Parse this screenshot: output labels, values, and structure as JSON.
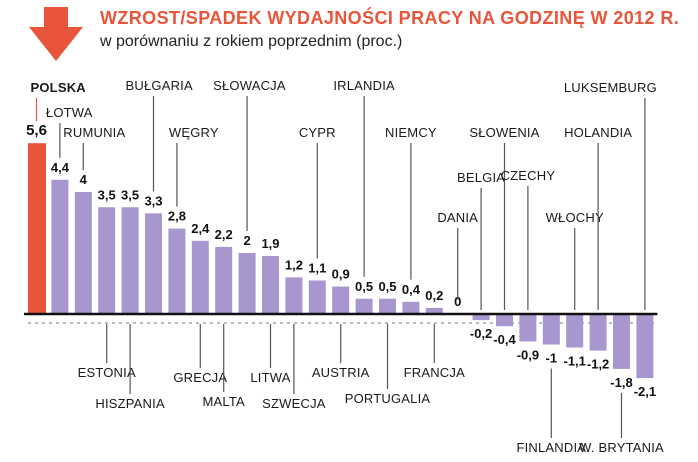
{
  "header": {
    "title": "WZROST/SPADEK WYDAJNOŚCI PRACY NA GODZINĘ W 2012 R.",
    "subtitle": "w porównaniu z rokiem poprzednim (proc.)",
    "icon": "down-arrow-icon"
  },
  "colors": {
    "accent": "#e8553a",
    "bar": "#a896cf",
    "axis": "#111111",
    "leader": "#555555",
    "axis_dash": "#777777"
  },
  "chart_data": {
    "type": "bar",
    "title": "WZROST/SPADEK WYDAJNOŚCI PRACY NA GODZINĘ W 2012 R.",
    "subtitle": "w porównaniu z rokiem poprzednim (proc.)",
    "xlabel": "",
    "ylabel": "",
    "ylim": [
      -2.1,
      5.6
    ],
    "grid": false,
    "legend": "none",
    "highlight": "POLSKA",
    "categories": [
      "POLSKA",
      "ŁOTWA",
      "RUMUNIA",
      "ESTONIA",
      "HISZPANIA",
      "BUŁGARIA",
      "WĘGRY",
      "GRECJA",
      "MALTA",
      "SŁOWACJA",
      "LITWA",
      "SZWECJA",
      "CYPR",
      "AUSTRIA",
      "IRLANDIA",
      "PORTUGALIA",
      "NIEMCY",
      "FRANCJA",
      "DANIA",
      "BELGIA",
      "SŁOWENIA",
      "CZECHY",
      "FINLANDIA",
      "WŁOCHY",
      "HOLANDIA",
      "W. BRYTANIA",
      "LUKSEMBURG"
    ],
    "values": [
      5.6,
      4.4,
      4,
      3.5,
      3.5,
      3.3,
      2.8,
      2.4,
      2.2,
      2,
      1.9,
      1.2,
      1.1,
      0.9,
      0.5,
      0.5,
      0.4,
      0.2,
      0,
      -0.2,
      -0.4,
      -0.9,
      -1,
      -1.1,
      -1.2,
      -1.8,
      -2.1
    ],
    "value_labels": [
      "5,6",
      "4,4",
      "4",
      "3,5",
      "3,5",
      "3,3",
      "2,8",
      "2,4",
      "2,2",
      "2",
      "1,9",
      "1,2",
      "1,1",
      "0,9",
      "0,5",
      "0,5",
      "0,4",
      "0,2",
      "0",
      "-0,2",
      "-0,4",
      "-0,9",
      "-1",
      "-1,1",
      "-1,2",
      "-1,8",
      "-2,1"
    ]
  }
}
